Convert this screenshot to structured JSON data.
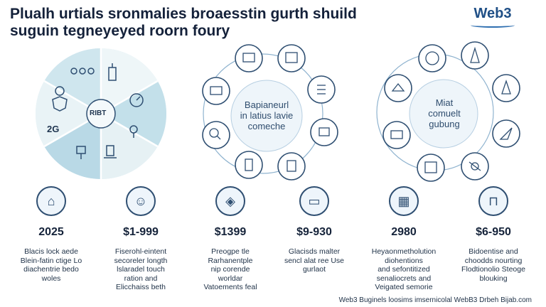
{
  "header": {
    "title_line1": "Plualh urtials sronmalies broaesstin gurth shuild",
    "title_line2": "suguin tegneyeyed roorn foury",
    "brand": "Web3"
  },
  "wheel": {
    "center_label": "RIBT",
    "side_label": "2G"
  },
  "hub_middle": {
    "line1": "Bapianeurl",
    "line2": "in latius lavie",
    "line3": "comeche"
  },
  "hub_right": {
    "line1": "Miat",
    "line2": "comuelt",
    "line3": "gubung"
  },
  "stats": [
    {
      "icon": "house-icon",
      "glyph": "⌂",
      "value": "2025",
      "line1": "Blacis lock aede",
      "line2": "Blein-fatin ctige Lo",
      "line3": "diachentrie bedo",
      "line4": "woles"
    },
    {
      "icon": "user-icon",
      "glyph": "☺",
      "value": "$1-999",
      "line1": "Fiserohl-eintent",
      "line2": "secoreler longth",
      "line3": "lslaradel touch",
      "line4": "ration and",
      "line5": "Elicchaiss beth"
    },
    {
      "icon": "map-icon",
      "glyph": "◈",
      "value": "$1399",
      "line1": "Preogpe tle",
      "line2": "Rarhanentple",
      "line3": "nip corende",
      "line4": "worldar",
      "line5": "Vatoements feal"
    },
    {
      "icon": "laptop-icon",
      "glyph": "▭",
      "value": "$9-930",
      "line1": "Glacisds malter",
      "line2": "sencl alat ree Use",
      "line3": "gurlaot"
    },
    {
      "icon": "dashboard-icon",
      "glyph": "▦",
      "value": "2980",
      "line1": "Heyaonmetholution",
      "line2": "diohentions",
      "line3": "and sefontitized",
      "line4": "senaliocrets and",
      "line5": "Veigated semorie"
    },
    {
      "icon": "lock-icon",
      "glyph": "⊓",
      "value": "$6-950",
      "line1": "Bidoentise and",
      "line2": "choodds nourting",
      "line3": "Flodtionolio Steoge",
      "line4": "blouking"
    }
  ],
  "footer": {
    "text": "Web3 Buginels loosims imsernicolal WebB3 Drbeh Bijab.com"
  }
}
